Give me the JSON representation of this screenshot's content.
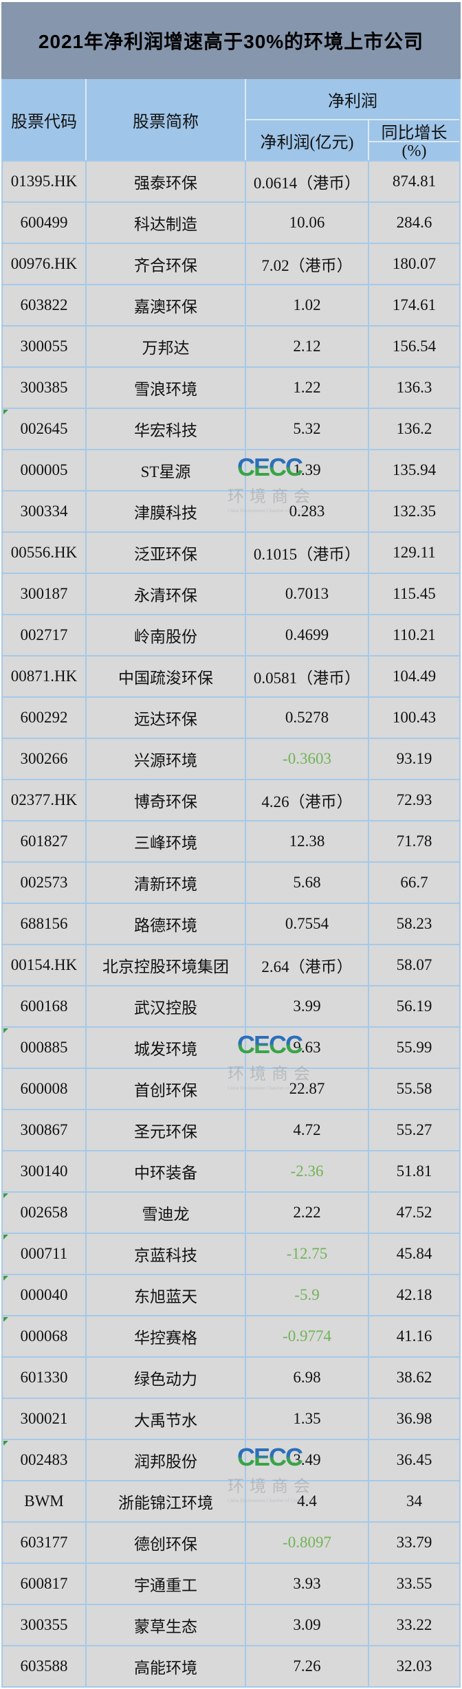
{
  "chart_data": {
    "type": "table",
    "title": "2021年净利润增速高于30%的环境上市公司",
    "columns": [
      "股票代码",
      "股票简称",
      "净利润(亿元)",
      "同比增长(%)"
    ],
    "rows": [
      {
        "code": "01395.HK",
        "name": "强泰环保",
        "profit": "0.0614（港币）",
        "growth": "874.81",
        "negative": false,
        "marker": false,
        "logo": false
      },
      {
        "code": "600499",
        "name": "科达制造",
        "profit": "10.06",
        "growth": "284.6",
        "negative": false,
        "marker": false,
        "logo": false
      },
      {
        "code": "00976.HK",
        "name": "齐合环保",
        "profit": "7.02（港币）",
        "growth": "180.07",
        "negative": false,
        "marker": false,
        "logo": false
      },
      {
        "code": "603822",
        "name": "嘉澳环保",
        "profit": "1.02",
        "growth": "174.61",
        "negative": false,
        "marker": false,
        "logo": false
      },
      {
        "code": "300055",
        "name": "万邦达",
        "profit": "2.12",
        "growth": "156.54",
        "negative": false,
        "marker": false,
        "logo": false
      },
      {
        "code": "300385",
        "name": "雪浪环境",
        "profit": "1.22",
        "growth": "136.3",
        "negative": false,
        "marker": false,
        "logo": false
      },
      {
        "code": "002645",
        "name": "华宏科技",
        "profit": "5.32",
        "growth": "136.2",
        "negative": false,
        "marker": true,
        "logo": false
      },
      {
        "code": "000005",
        "name": "ST星源",
        "profit": "1.39",
        "growth": "135.94",
        "negative": false,
        "marker": false,
        "logo": true
      },
      {
        "code": "300334",
        "name": "津膜科技",
        "profit": "0.283",
        "growth": "132.35",
        "negative": false,
        "marker": false,
        "logo": false
      },
      {
        "code": "00556.HK",
        "name": "泛亚环保",
        "profit": "0.1015（港币）",
        "growth": "129.11",
        "negative": false,
        "marker": false,
        "logo": false
      },
      {
        "code": "300187",
        "name": "永清环保",
        "profit": "0.7013",
        "growth": "115.45",
        "negative": false,
        "marker": false,
        "logo": false
      },
      {
        "code": "002717",
        "name": "岭南股份",
        "profit": "0.4699",
        "growth": "110.21",
        "negative": false,
        "marker": false,
        "logo": false
      },
      {
        "code": "00871.HK",
        "name": "中国疏浚环保",
        "profit": "0.0581（港币）",
        "growth": "104.49",
        "negative": false,
        "marker": false,
        "logo": false
      },
      {
        "code": "600292",
        "name": "远达环保",
        "profit": "0.5278",
        "growth": "100.43",
        "negative": false,
        "marker": false,
        "logo": false
      },
      {
        "code": "300266",
        "name": "兴源环境",
        "profit": "-0.3603",
        "growth": "93.19",
        "negative": true,
        "marker": false,
        "logo": false
      },
      {
        "code": "02377.HK",
        "name": "博奇环保",
        "profit": "4.26（港币）",
        "growth": "72.93",
        "negative": false,
        "marker": false,
        "logo": false
      },
      {
        "code": "601827",
        "name": "三峰环境",
        "profit": "12.38",
        "growth": "71.78",
        "negative": false,
        "marker": false,
        "logo": false
      },
      {
        "code": "002573",
        "name": "清新环境",
        "profit": "5.68",
        "growth": "66.7",
        "negative": false,
        "marker": false,
        "logo": false
      },
      {
        "code": "688156",
        "name": "路德环境",
        "profit": "0.7554",
        "growth": "58.23",
        "negative": false,
        "marker": false,
        "logo": false
      },
      {
        "code": "00154.HK",
        "name": "北京控股环境集团",
        "profit": "2.64（港币）",
        "growth": "58.07",
        "negative": false,
        "marker": false,
        "logo": false
      },
      {
        "code": "600168",
        "name": "武汉控股",
        "profit": "3.99",
        "growth": "56.19",
        "negative": false,
        "marker": false,
        "logo": false
      },
      {
        "code": "000885",
        "name": "城发环境",
        "profit": "9.63",
        "growth": "55.99",
        "negative": false,
        "marker": true,
        "logo": true
      },
      {
        "code": "600008",
        "name": "首创环保",
        "profit": "22.87",
        "growth": "55.58",
        "negative": false,
        "marker": false,
        "logo": false
      },
      {
        "code": "300867",
        "name": "圣元环保",
        "profit": "4.72",
        "growth": "55.27",
        "negative": false,
        "marker": false,
        "logo": false
      },
      {
        "code": "300140",
        "name": "中环装备",
        "profit": "-2.36",
        "growth": "51.81",
        "negative": true,
        "marker": false,
        "logo": false
      },
      {
        "code": "002658",
        "name": "雪迪龙",
        "profit": "2.22",
        "growth": "47.52",
        "negative": false,
        "marker": true,
        "logo": false
      },
      {
        "code": "000711",
        "name": "京蓝科技",
        "profit": "-12.75",
        "growth": "45.84",
        "negative": true,
        "marker": true,
        "logo": false
      },
      {
        "code": "000040",
        "name": "东旭蓝天",
        "profit": "-5.9",
        "growth": "42.18",
        "negative": true,
        "marker": true,
        "logo": false
      },
      {
        "code": "000068",
        "name": "华控赛格",
        "profit": "-0.9774",
        "growth": "41.16",
        "negative": true,
        "marker": true,
        "logo": false
      },
      {
        "code": "601330",
        "name": "绿色动力",
        "profit": "6.98",
        "growth": "38.62",
        "negative": false,
        "marker": false,
        "logo": false
      },
      {
        "code": "300021",
        "name": "大禹节水",
        "profit": "1.35",
        "growth": "36.98",
        "negative": false,
        "marker": false,
        "logo": false
      },
      {
        "code": "002483",
        "name": "润邦股份",
        "profit": "3.49",
        "growth": "36.45",
        "negative": false,
        "marker": true,
        "logo": true
      },
      {
        "code": "BWM",
        "name": "浙能锦江环境",
        "profit": "4.4",
        "growth": "34",
        "negative": false,
        "marker": false,
        "logo": false
      },
      {
        "code": "603177",
        "name": "德创环保",
        "profit": "-0.8097",
        "growth": "33.79",
        "negative": true,
        "marker": false,
        "logo": false
      },
      {
        "code": "600817",
        "name": "宇通重工",
        "profit": "3.93",
        "growth": "33.55",
        "negative": false,
        "marker": false,
        "logo": false
      },
      {
        "code": "300355",
        "name": "蒙草生态",
        "profit": "3.09",
        "growth": "33.22",
        "negative": false,
        "marker": false,
        "logo": false
      },
      {
        "code": "603588",
        "name": "高能环境",
        "profit": "7.26",
        "growth": "32.03",
        "negative": false,
        "marker": false,
        "logo": false
      }
    ]
  },
  "header": {
    "code": "股票代码",
    "name": "股票简称",
    "profit_group": "净利润",
    "profit": "净利润(亿元)",
    "growth_line1": "同比增长",
    "growth_line2": "(%)"
  },
  "watermark": {
    "logo": "CECC",
    "subtitle": "环境商会",
    "tagline": "China Environment Chamber of Commerce"
  },
  "colors": {
    "title_bg": "#8696ac",
    "header_bg": "#9fc5e8",
    "row_bg": "#d9d9d9",
    "grid_line": "#a5c9e9",
    "negative_green": "#71b356",
    "marker_green": "#3a9b3f",
    "logo_blue": "#2a6fba",
    "logo_green": "#39a348"
  }
}
